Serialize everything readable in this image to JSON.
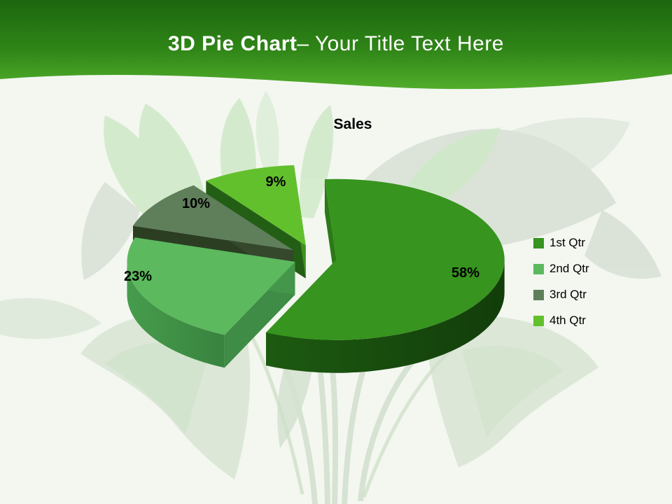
{
  "slide": {
    "title_bold": "3D Pie Chart",
    "title_rest": "– Your Title Text Here",
    "background_tint": "#f3f7f0",
    "banner": {
      "gradient_top": "#1c660f",
      "gradient_mid": "#2f8517",
      "gradient_bottom": "#51ad2b",
      "text_color": "#ffffff"
    }
  },
  "chart_data": {
    "type": "pie",
    "is_3d": true,
    "exploded": true,
    "title": "Sales",
    "legend_position": "right",
    "label_format": "percent",
    "slices": [
      {
        "label": "1st Qtr",
        "value": 58,
        "display": "58%",
        "color_top": "#37941e",
        "color_wall_start": "#2b7a17",
        "color_wall_end": "#1d5410",
        "color_arc": "#1d5a11",
        "color_arc2": "#123d0a"
      },
      {
        "label": "2nd Qtr",
        "value": 23,
        "display": "23%",
        "color_top": "#5cb95e",
        "color_wall_start": "#3e8c45",
        "color_wall_end": "#44964a",
        "color_arc": "#479c4c",
        "color_arc2": "#38833f"
      },
      {
        "label": "3rd Qtr",
        "value": 10,
        "display": "10%",
        "color_top": "#5f7f5b",
        "color_wall_start": "#2b3e22",
        "color_wall_end": "#35482c",
        "color_arc": "#2b3e22",
        "color_arc2": "#2b3e22"
      },
      {
        "label": "4th Qtr",
        "value": 9,
        "display": "9%",
        "color_top": "#63c02d",
        "color_wall_start": "#235e15",
        "color_wall_end": "#41901f",
        "color_arc": "#235e15",
        "color_arc2": "#235e15"
      }
    ]
  }
}
